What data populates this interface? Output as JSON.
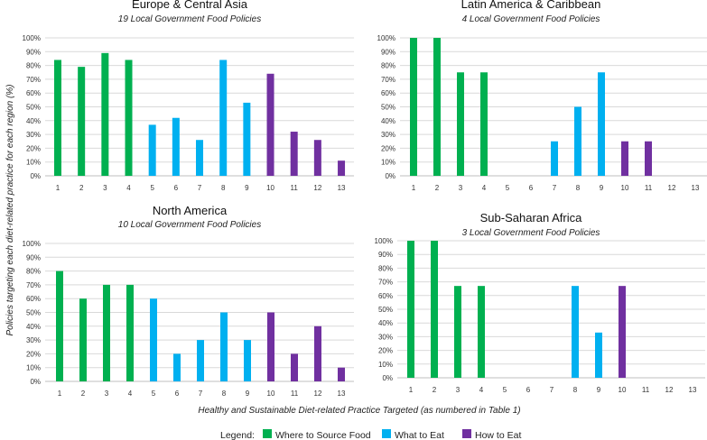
{
  "colors": {
    "where": "#00b050",
    "what": "#00b0f0",
    "how": "#7030a0"
  },
  "y_axis_label": "Policies targeting each diet-related practice for each region (%)",
  "x_axis_label": "Healthy and Sustainable Diet-related Practice Targeted (as numbered in Table 1)",
  "legend": {
    "title": "Legend:",
    "items": [
      {
        "label": "Where to Source Food",
        "color": "#00b050"
      },
      {
        "label": "What to Eat",
        "color": "#00b0f0"
      },
      {
        "label": "How to Eat",
        "color": "#7030a0"
      }
    ]
  },
  "chart_data": [
    {
      "type": "bar",
      "title": "Europe & Central Asia",
      "subtitle": "19 Local Government Food Policies",
      "categories": [
        "1",
        "2",
        "3",
        "4",
        "5",
        "6",
        "7",
        "8",
        "9",
        "10",
        "11",
        "12",
        "13"
      ],
      "values": [
        84,
        79,
        89,
        84,
        37,
        42,
        26,
        84,
        53,
        74,
        32,
        26,
        11
      ],
      "groups": [
        "where",
        "where",
        "where",
        "where",
        "what",
        "what",
        "what",
        "what",
        "what",
        "how",
        "how",
        "how",
        "how"
      ],
      "ylim": [
        0,
        100
      ],
      "yticks": [
        "0%",
        "10%",
        "20%",
        "30%",
        "40%",
        "50%",
        "60%",
        "70%",
        "80%",
        "90%",
        "100%"
      ]
    },
    {
      "type": "bar",
      "title": "Latin America & Caribbean",
      "subtitle": "4 Local Government Food Policies",
      "categories": [
        "1",
        "2",
        "3",
        "4",
        "5",
        "6",
        "7",
        "8",
        "9",
        "10",
        "11",
        "12",
        "13"
      ],
      "values": [
        100,
        100,
        75,
        75,
        0,
        0,
        25,
        50,
        75,
        25,
        25,
        0,
        0
      ],
      "groups": [
        "where",
        "where",
        "where",
        "where",
        "what",
        "what",
        "what",
        "what",
        "what",
        "how",
        "how",
        "how",
        "how"
      ],
      "ylim": [
        0,
        100
      ],
      "yticks": [
        "0%",
        "10%",
        "20%",
        "30%",
        "40%",
        "50%",
        "60%",
        "70%",
        "80%",
        "90%",
        "100%"
      ]
    },
    {
      "type": "bar",
      "title": "North America",
      "subtitle": "10 Local Government Food Policies",
      "categories": [
        "1",
        "2",
        "3",
        "4",
        "5",
        "6",
        "7",
        "8",
        "9",
        "10",
        "11",
        "12",
        "13"
      ],
      "values": [
        80,
        60,
        70,
        70,
        60,
        20,
        30,
        50,
        30,
        50,
        20,
        40,
        10
      ],
      "groups": [
        "where",
        "where",
        "where",
        "where",
        "what",
        "what",
        "what",
        "what",
        "what",
        "how",
        "how",
        "how",
        "how"
      ],
      "ylim": [
        0,
        100
      ],
      "yticks": [
        "0%",
        "10%",
        "20%",
        "30%",
        "40%",
        "50%",
        "60%",
        "70%",
        "80%",
        "90%",
        "100%"
      ]
    },
    {
      "type": "bar",
      "title": "Sub-Saharan Africa",
      "subtitle": "3 Local Government Food Policies",
      "categories": [
        "1",
        "2",
        "3",
        "4",
        "5",
        "6",
        "7",
        "8",
        "9",
        "10",
        "11",
        "12",
        "13"
      ],
      "values": [
        100,
        100,
        67,
        67,
        0,
        0,
        0,
        67,
        33,
        67,
        0,
        0,
        0
      ],
      "groups": [
        "where",
        "where",
        "where",
        "where",
        "what",
        "what",
        "what",
        "what",
        "what",
        "how",
        "how",
        "how",
        "how"
      ],
      "ylim": [
        0,
        100
      ],
      "yticks": [
        "0%",
        "10%",
        "20%",
        "30%",
        "40%",
        "50%",
        "60%",
        "70%",
        "80%",
        "90%",
        "100%"
      ]
    }
  ]
}
